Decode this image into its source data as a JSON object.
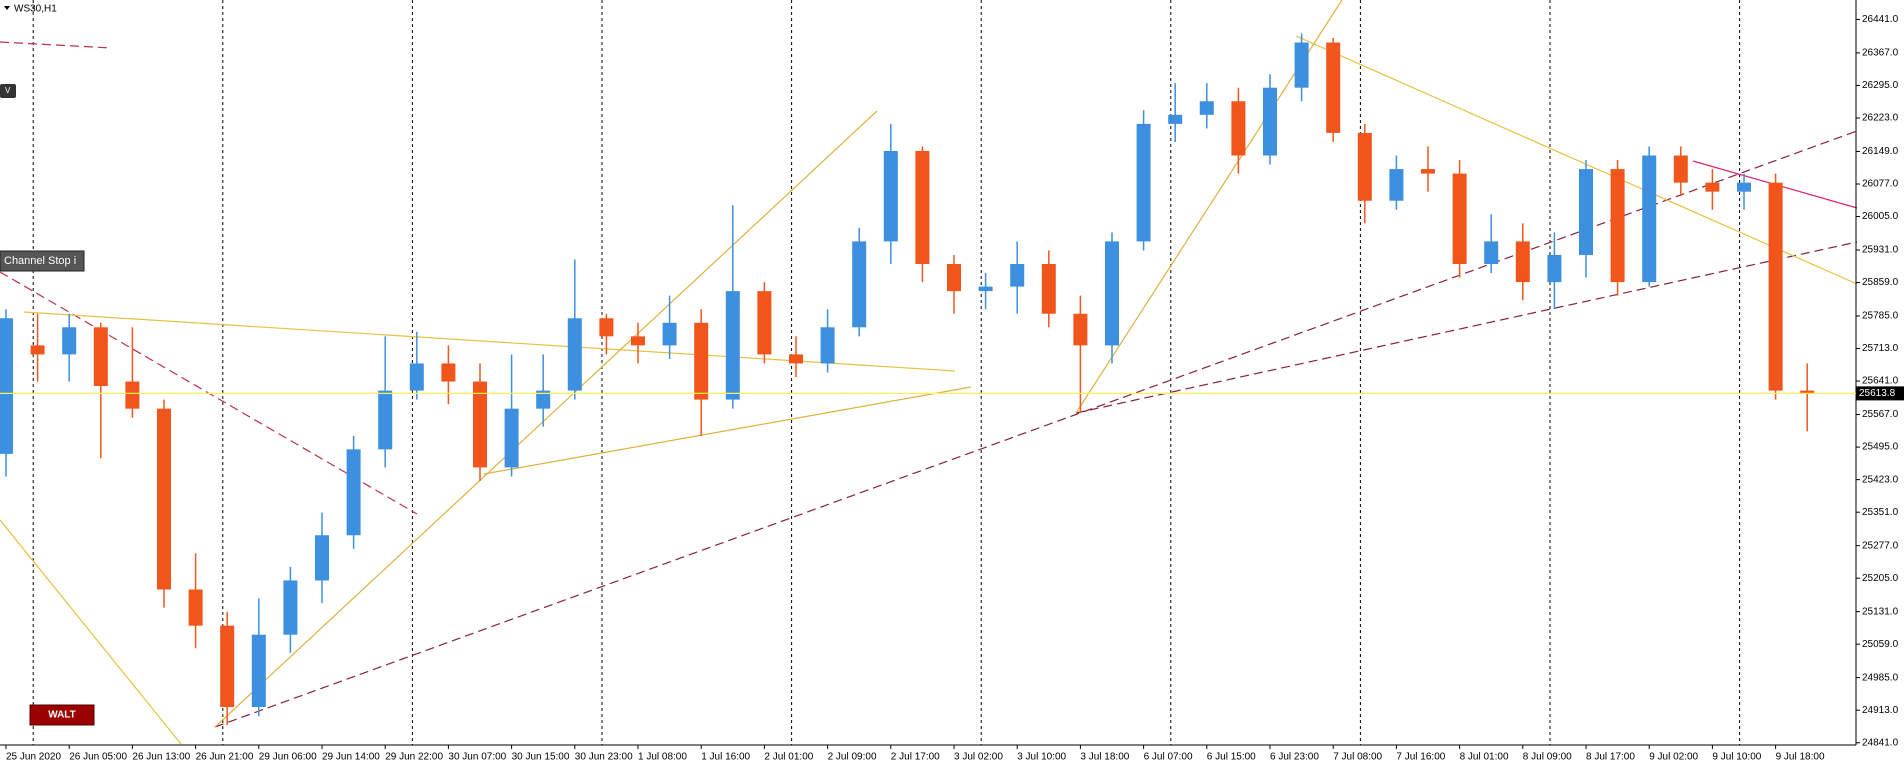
{
  "chart_data": {
    "type": "candlestick",
    "title": "WS30,H1",
    "annotations": [
      "V",
      "Channel Stop i",
      "WALT"
    ],
    "up_color": "#3d8fe0",
    "down_color": "#f0561c",
    "price_line_color": "#ffee55",
    "current_price": 25613.8,
    "categories": [
      "25 Jun 2020",
      null,
      "26 Jun 05:00",
      null,
      "26 Jun 13:00",
      null,
      "26 Jun 21:00",
      null,
      "29 Jun 06:00",
      null,
      "29 Jun 14:00",
      null,
      "29 Jun 22:00",
      null,
      "30 Jun 07:00",
      null,
      "30 Jun 15:00",
      null,
      "30 Jun 23:00",
      null,
      "1 Jul 08:00",
      null,
      "1 Jul 16:00",
      null,
      "2 Jul 01:00",
      null,
      "2 Jul 09:00",
      null,
      "2 Jul 17:00",
      null,
      "3 Jul 02:00",
      null,
      "3 Jul 10:00",
      null,
      "3 Jul 18:00",
      null,
      "6 Jul 07:00",
      null,
      "6 Jul 15:00",
      null,
      "6 Jul 23:00",
      null,
      "7 Jul 08:00",
      null,
      "7 Jul 16:00",
      null,
      "8 Jul 01:00",
      null,
      "8 Jul 09:00",
      null,
      "8 Jul 17:00",
      null,
      "9 Jul 02:00",
      null,
      "9 Jul 10:00",
      null,
      "9 Jul 18:00",
      null
    ],
    "open": [
      25480,
      25720,
      25700,
      25760,
      25640,
      25580,
      25180,
      25100,
      24920,
      25080,
      25200,
      25300,
      25490,
      25620,
      25680,
      25640,
      25450,
      25580,
      25620,
      25780,
      25740,
      25720,
      25770,
      25600,
      25840,
      25700,
      25680,
      25760,
      25950,
      26150,
      25900,
      25840,
      25850,
      25900,
      25790,
      25720,
      25950,
      26210,
      26230,
      26260,
      26140,
      26290,
      26390,
      26190,
      26040,
      26110,
      26100,
      25900,
      25950,
      25860,
      25920,
      26110,
      25860,
      26140,
      26080,
      26060,
      26080,
      25620
    ],
    "high": [
      25800,
      25790,
      25790,
      25770,
      25760,
      25600,
      25260,
      25130,
      25160,
      25230,
      25350,
      25520,
      25740,
      25750,
      25720,
      25680,
      25700,
      25700,
      25910,
      25790,
      25770,
      25830,
      25800,
      26030,
      25860,
      25740,
      25800,
      25980,
      26210,
      26160,
      25920,
      25880,
      25950,
      25930,
      25830,
      25970,
      26240,
      26300,
      26300,
      26290,
      26320,
      26410,
      26400,
      26210,
      26140,
      26160,
      26130,
      26010,
      25990,
      25970,
      26130,
      26130,
      26160,
      26160,
      26110,
      26100,
      26100,
      25680
    ],
    "low": [
      25430,
      25640,
      25640,
      25470,
      25560,
      25140,
      25050,
      24880,
      24900,
      25040,
      25150,
      25270,
      25450,
      25600,
      25590,
      25420,
      25430,
      25540,
      25600,
      25700,
      25680,
      25690,
      25520,
      25580,
      25680,
      25650,
      25660,
      25740,
      25900,
      25860,
      25790,
      25800,
      25790,
      25760,
      25570,
      25680,
      25930,
      26170,
      26200,
      26100,
      26120,
      26260,
      26170,
      25990,
      26020,
      26060,
      25870,
      25880,
      25820,
      25800,
      25870,
      25830,
      25850,
      26050,
      26020,
      26020,
      25600,
      25530
    ],
    "close": [
      25780,
      25700,
      25760,
      25630,
      25580,
      25180,
      25100,
      24920,
      25080,
      25200,
      25300,
      25490,
      25620,
      25680,
      25640,
      25450,
      25580,
      25620,
      25780,
      25740,
      25720,
      25770,
      25600,
      25840,
      25700,
      25680,
      25760,
      25950,
      26150,
      25900,
      25840,
      25850,
      25900,
      25790,
      25720,
      25950,
      26210,
      26230,
      26260,
      26140,
      26290,
      26390,
      26190,
      26040,
      26110,
      26100,
      25900,
      25950,
      25860,
      25920,
      26110,
      25860,
      26140,
      26080,
      26060,
      26080,
      25620,
      25614
    ],
    "ylim": [
      24836,
      26484
    ],
    "yticks": [
      {
        "value": 26441,
        "label": "26441.0"
      },
      {
        "value": 26367,
        "label": "26367.0"
      },
      {
        "value": 26295,
        "label": "26295.0"
      },
      {
        "value": 26223,
        "label": "26223.0"
      },
      {
        "value": 26149,
        "label": "26149.0"
      },
      {
        "value": 26077,
        "label": "26077.0"
      },
      {
        "value": 26005,
        "label": "26005.0"
      },
      {
        "value": 25931,
        "label": "25931.0"
      },
      {
        "value": 25859,
        "label": "25859.0"
      },
      {
        "value": 25785,
        "label": "25785.0"
      },
      {
        "value": 25713,
        "label": "25713.0"
      },
      {
        "value": 25641,
        "label": "25641.0"
      },
      {
        "value": 25567,
        "label": "25567.0"
      },
      {
        "value": 25495,
        "label": "25495.0"
      },
      {
        "value": 25423,
        "label": "25423.0"
      },
      {
        "value": 25351,
        "label": "25351.0"
      },
      {
        "value": 25277,
        "label": "25277.0"
      },
      {
        "value": 25205,
        "label": "25205.0"
      },
      {
        "value": 25131,
        "label": "25131.0"
      },
      {
        "value": 25059,
        "label": "25059.0"
      },
      {
        "value": 24985,
        "label": "24985.0"
      },
      {
        "value": 24913,
        "label": "24913.0"
      },
      {
        "value": 24841,
        "label": "24841.0"
      }
    ]
  }
}
